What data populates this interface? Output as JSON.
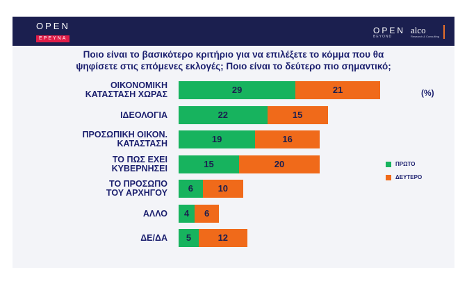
{
  "header": {
    "logo_left_main": "OPEN",
    "logo_left_sub": "ΕΡΕΥΝΑ",
    "logo_right_main": "OPEN",
    "logo_right_sub": "BEYOND",
    "partner_logo": "alco",
    "partner_sub": "Research & Consulting"
  },
  "title_line1": "Ποιο είναι το βασικότερο κριτήριο για να επιλέξετε το κόμμα που θα",
  "title_line2": "ψηφίσετε στις επόμενες εκλογές; Ποιο είναι το δεύτερο πιο σημαντικό;",
  "unit_label": "(%)",
  "colors": {
    "first": "#17b35e",
    "second": "#f06a1a",
    "text": "#1b1f6e",
    "header": "#1b1f4f"
  },
  "chart_data": {
    "type": "bar",
    "orientation": "horizontal",
    "stacked": true,
    "title": "Ποιο είναι το βασικότερο κριτήριο για να επιλέξετε το κόμμα που θα ψηφίσετε στις επόμενες εκλογές; Ποιο είναι το δεύτερο πιο σημαντικό;",
    "unit": "(%)",
    "categories": [
      [
        "ΟΙΚΟΝΟΜΙΚΗ",
        "ΚΑΤΑΣΤΑΣΗ ΧΩΡΑΣ"
      ],
      [
        "ΙΔΕΟΛΟΓΙΑ"
      ],
      [
        "ΠΡΟΣΩΠΙΚΗ ΟΙΚΟΝ.",
        "ΚΑΤΑΣΤΑΣΗ"
      ],
      [
        "ΤΟ ΠΩΣ ΕΧΕΙ",
        "ΚΥΒΕΡΝΗΣΕΙ"
      ],
      [
        "ΤΟ ΠΡΟΣΩΠΟ",
        "ΤΟΥ ΑΡΧΗΓΟΥ"
      ],
      [
        "ΑΛΛΟ"
      ],
      [
        "ΔΕ/ΔΑ"
      ]
    ],
    "series": [
      {
        "name": "ΠΡΩΤΟ",
        "values": [
          29,
          22,
          19,
          15,
          6,
          4,
          5
        ]
      },
      {
        "name": "ΔΕΥΤΕΡΟ",
        "values": [
          21,
          15,
          16,
          20,
          10,
          6,
          12
        ]
      }
    ],
    "legend_position": "right",
    "grid": false
  }
}
